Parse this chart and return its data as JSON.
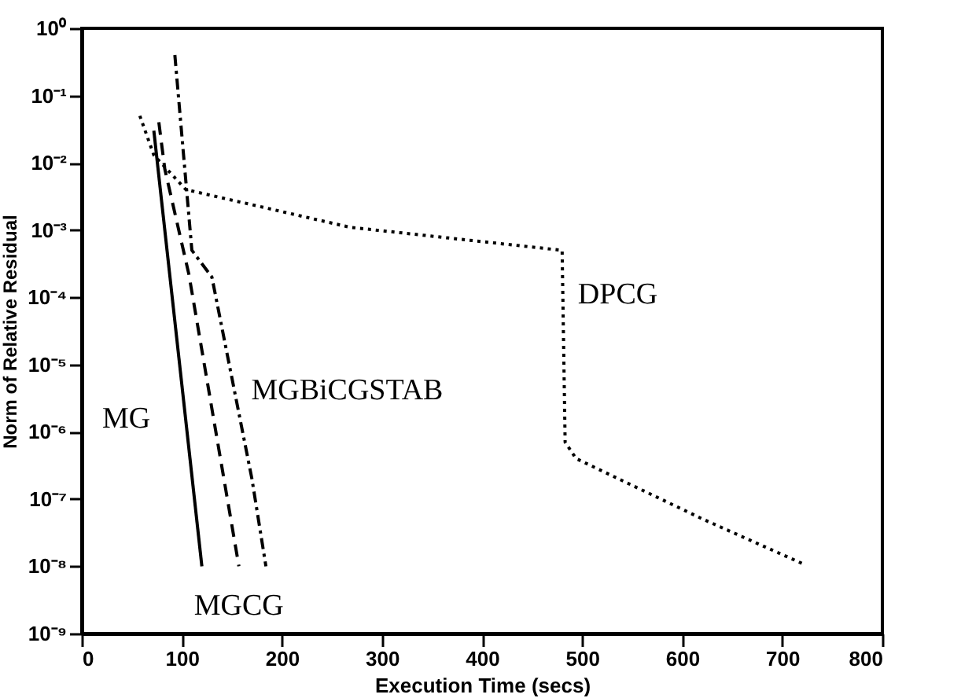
{
  "chart_data": {
    "type": "line",
    "xlabel": "Execution Time (secs)",
    "ylabel": "Norm of Relative Residual",
    "log": "y",
    "grid": false,
    "marker": "none",
    "xlim": [
      0,
      800
    ],
    "xticks": [
      0,
      100,
      200,
      300,
      400,
      500,
      600,
      700,
      800
    ],
    "ylim": [
      1e-09,
      1
    ],
    "yticks": [
      {
        "value": 1,
        "label": "10⁰"
      },
      {
        "value": 0.1,
        "label": "10⁻¹"
      },
      {
        "value": 0.01,
        "label": "10⁻²"
      },
      {
        "value": 0.001,
        "label": "10⁻³"
      },
      {
        "value": 0.0001,
        "label": "10⁻⁴"
      },
      {
        "value": 1e-05,
        "label": "10⁻⁵"
      },
      {
        "value": 1e-06,
        "label": "10⁻⁶"
      },
      {
        "value": 1e-07,
        "label": "10⁻⁷"
      },
      {
        "value": 1e-08,
        "label": "10⁻⁸"
      },
      {
        "value": 1e-09,
        "label": "10⁻⁹"
      }
    ],
    "series": [
      {
        "name": "MG",
        "color": "#000000",
        "line_style": "solid",
        "x": [
          72,
          120
        ],
        "values": [
          0.03,
          1e-08
        ]
      },
      {
        "name": "MGCG",
        "color": "#000000",
        "line_style": "dashed",
        "x": [
          77,
          83,
          107,
          157
        ],
        "values": [
          0.04,
          0.008,
          0.00022,
          1e-08
        ]
      },
      {
        "name": "MGBiCGSTAB",
        "color": "#000000",
        "line_style": "dashdot",
        "x": [
          93,
          110,
          130,
          170,
          184
        ],
        "values": [
          0.4,
          0.0005,
          0.0002,
          2e-07,
          1e-08
        ]
      },
      {
        "name": "DPCG",
        "color": "#000000",
        "line_style": "dotted",
        "x": [
          58,
          72,
          104,
          268,
          480,
          483,
          494,
          621,
          720
        ],
        "values": [
          0.05,
          0.013,
          0.004,
          0.0011,
          0.0005,
          7e-07,
          4e-07,
          5e-08,
          1.1e-08
        ]
      }
    ]
  }
}
